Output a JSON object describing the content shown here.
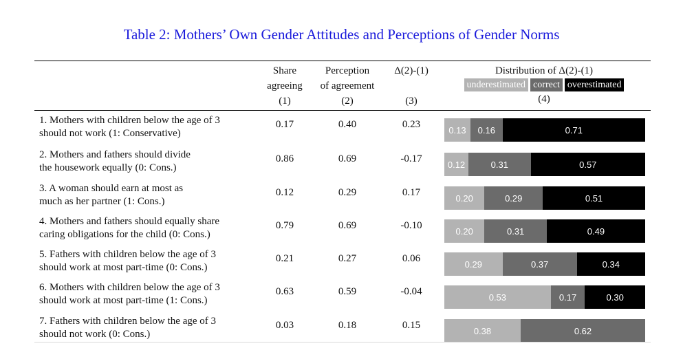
{
  "table": {
    "title": "Table 2: Mothers’ Own Gender Attitudes and Perceptions of Gender Norms",
    "headers": {
      "col1": [
        "Share",
        "agreeing",
        "(1)"
      ],
      "col2": [
        "Perception",
        "of agreement",
        "(2)"
      ],
      "col3": [
        "Δ(2)-(1)",
        "(3)"
      ],
      "col4": [
        "Distribution of Δ(2)-(1)",
        "(4)"
      ]
    },
    "legend": {
      "under": "underestimated",
      "correct": "correct",
      "over": "overestimated"
    },
    "colors": {
      "under": "#b3b3b3",
      "correct": "#6b6b6b",
      "over": "#000000",
      "title": "#1a1adb"
    },
    "rows": [
      {
        "label_lines": [
          "1. Mothers with children below the age of 3",
          "should not work (1: Conservative)"
        ],
        "share": "0.17",
        "perception": "0.40",
        "delta": "0.23",
        "dist": {
          "under": "0.13",
          "correct": "0.16",
          "over": "0.71"
        }
      },
      {
        "label_lines": [
          "2. Mothers and fathers should divide",
          "the housework equally (0: Cons.)"
        ],
        "share": "0.86",
        "perception": "0.69",
        "delta": "-0.17",
        "dist": {
          "under": "0.12",
          "correct": "0.31",
          "over": "0.57"
        }
      },
      {
        "label_lines": [
          "3. A woman should earn at most as",
          "much as her partner (1: Cons.)"
        ],
        "share": "0.12",
        "perception": "0.29",
        "delta": "0.17",
        "dist": {
          "under": "0.20",
          "correct": "0.29",
          "over": "0.51"
        }
      },
      {
        "label_lines": [
          "4. Mothers and fathers should equally share",
          "caring obligations for the child (0: Cons.)"
        ],
        "share": "0.79",
        "perception": "0.69",
        "delta": "-0.10",
        "dist": {
          "under": "0.20",
          "correct": "0.31",
          "over": "0.49"
        }
      },
      {
        "label_lines": [
          "5. Fathers with children below the age of 3",
          "should work at most part-time (0: Cons.)"
        ],
        "share": "0.21",
        "perception": "0.27",
        "delta": "0.06",
        "dist": {
          "under": "0.29",
          "correct": "0.37",
          "over": "0.34"
        }
      },
      {
        "label_lines": [
          "6. Mothers with children below the age of 3",
          "should work at most part-time (1: Cons.)"
        ],
        "share": "0.63",
        "perception": "0.59",
        "delta": "-0.04",
        "dist": {
          "under": "0.53",
          "correct": "0.17",
          "over": "0.30"
        }
      },
      {
        "label_lines": [
          "7. Fathers with children below the age of 3",
          "should not work (0: Cons.)"
        ],
        "share": "0.03",
        "perception": "0.18",
        "delta": "0.15",
        "dist": {
          "under": "0.38",
          "correct": "0.62",
          "over": ""
        }
      }
    ]
  }
}
